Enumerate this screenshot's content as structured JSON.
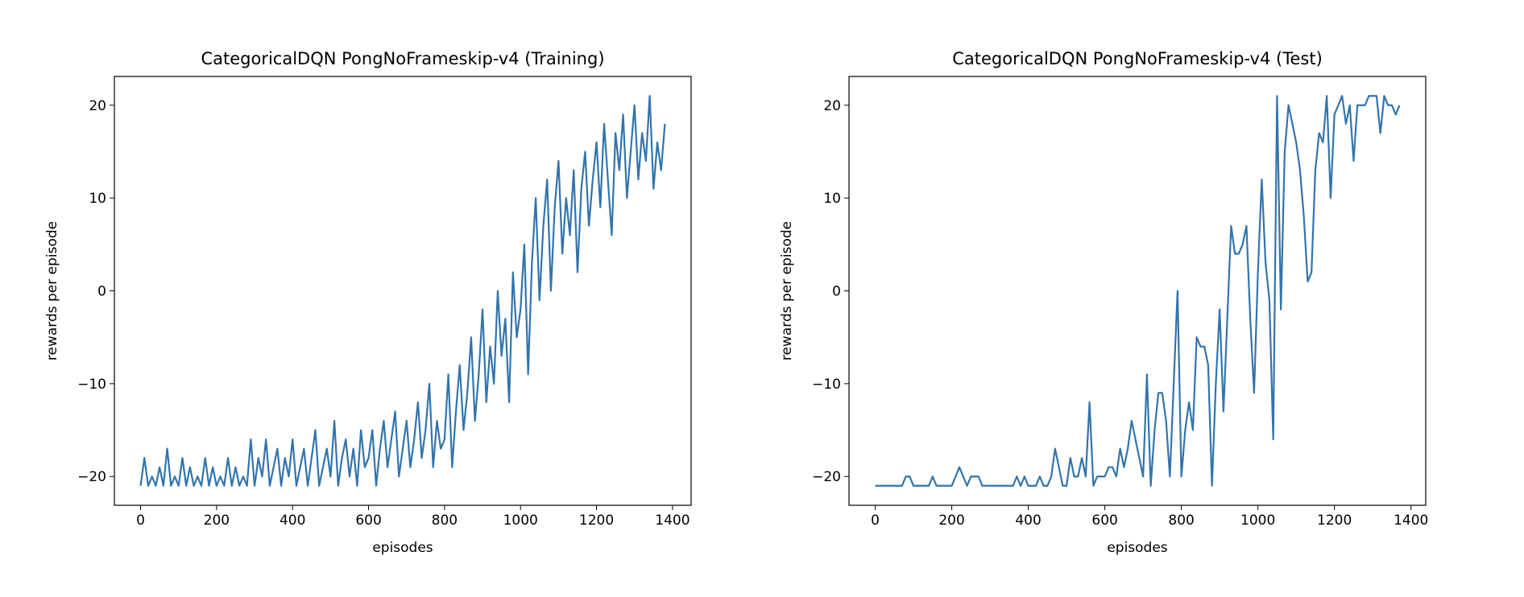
{
  "chart_data": [
    {
      "type": "line",
      "title": "CategoricalDQN PongNoFrameskip-v4 (Training)",
      "xlabel": "episodes",
      "ylabel": "rewards per episode",
      "xlim": [
        -69,
        1449
      ],
      "ylim": [
        -23.1,
        23.1
      ],
      "xticks": [
        0,
        200,
        400,
        600,
        800,
        1000,
        1200,
        1400
      ],
      "yticks": [
        {
          "value": -20,
          "label": "−20"
        },
        {
          "value": -10,
          "label": "−10"
        },
        0,
        10,
        20
      ],
      "series": [
        {
          "color": "#3274ad",
          "x": [
            0,
            10,
            20,
            30,
            40,
            50,
            60,
            70,
            80,
            90,
            100,
            110,
            120,
            130,
            140,
            150,
            160,
            170,
            180,
            190,
            200,
            210,
            220,
            230,
            240,
            250,
            260,
            270,
            280,
            290,
            300,
            310,
            320,
            330,
            340,
            350,
            360,
            370,
            380,
            390,
            400,
            410,
            420,
            430,
            440,
            450,
            460,
            470,
            480,
            490,
            500,
            510,
            520,
            530,
            540,
            550,
            560,
            570,
            580,
            590,
            600,
            610,
            620,
            630,
            640,
            650,
            660,
            670,
            680,
            690,
            700,
            710,
            720,
            730,
            740,
            750,
            760,
            770,
            780,
            790,
            800,
            810,
            820,
            830,
            840,
            850,
            860,
            870,
            880,
            890,
            900,
            910,
            920,
            930,
            940,
            950,
            960,
            970,
            980,
            990,
            1000,
            1010,
            1020,
            1030,
            1040,
            1050,
            1060,
            1070,
            1080,
            1090,
            1100,
            1110,
            1120,
            1130,
            1140,
            1150,
            1160,
            1170,
            1180,
            1190,
            1200,
            1210,
            1220,
            1230,
            1240,
            1250,
            1260,
            1270,
            1280,
            1290,
            1300,
            1310,
            1320,
            1330,
            1340,
            1350,
            1360,
            1370,
            1380
          ],
          "values": [
            -21,
            -18,
            -21,
            -20,
            -21,
            -19,
            -21,
            -17,
            -21,
            -20,
            -21,
            -18,
            -21,
            -19,
            -21,
            -20,
            -21,
            -18,
            -21,
            -19,
            -21,
            -20,
            -21,
            -18,
            -21,
            -19,
            -21,
            -20,
            -21,
            -16,
            -21,
            -18,
            -20,
            -16,
            -21,
            -19,
            -17,
            -21,
            -18,
            -20,
            -16,
            -21,
            -19,
            -17,
            -21,
            -18,
            -15,
            -21,
            -19,
            -17,
            -20,
            -14,
            -21,
            -18,
            -16,
            -20,
            -17,
            -21,
            -15,
            -19,
            -18,
            -15,
            -21,
            -17,
            -14,
            -19,
            -16,
            -13,
            -20,
            -17,
            -14,
            -19,
            -16,
            -12,
            -18,
            -15,
            -10,
            -19,
            -14,
            -17,
            -16,
            -9,
            -19,
            -13,
            -8,
            -15,
            -11,
            -5,
            -14,
            -9,
            -2,
            -12,
            -6,
            -10,
            0,
            -7,
            -3,
            -12,
            2,
            -5,
            -2,
            5,
            -9,
            3,
            10,
            -1,
            7,
            12,
            0,
            9,
            14,
            4,
            10,
            6,
            13,
            2,
            11,
            15,
            7,
            12,
            16,
            9,
            18,
            12,
            6,
            17,
            13,
            19,
            10,
            15,
            20,
            12,
            17,
            14,
            21,
            11,
            16,
            13,
            18
          ]
        }
      ]
    },
    {
      "type": "line",
      "title": "CategoricalDQN PongNoFrameskip-v4 (Test)",
      "xlabel": "episodes",
      "ylabel": "rewards per episode",
      "xlim": [
        -68.5,
        1438.5
      ],
      "ylim": [
        -23.1,
        23.1
      ],
      "xticks": [
        0,
        200,
        400,
        600,
        800,
        1000,
        1200,
        1400
      ],
      "yticks": [
        {
          "value": -20,
          "label": "−20"
        },
        {
          "value": -10,
          "label": "−10"
        },
        0,
        10,
        20
      ],
      "series": [
        {
          "color": "#3274ad",
          "x": [
            0,
            10,
            20,
            30,
            40,
            50,
            60,
            70,
            80,
            90,
            100,
            110,
            120,
            130,
            140,
            150,
            160,
            170,
            180,
            190,
            200,
            210,
            220,
            230,
            240,
            250,
            260,
            270,
            280,
            290,
            300,
            310,
            320,
            330,
            340,
            350,
            360,
            370,
            380,
            390,
            400,
            410,
            420,
            430,
            440,
            450,
            460,
            470,
            480,
            490,
            500,
            510,
            520,
            530,
            540,
            550,
            560,
            570,
            580,
            590,
            600,
            610,
            620,
            630,
            640,
            650,
            660,
            670,
            680,
            690,
            700,
            710,
            720,
            730,
            740,
            750,
            760,
            770,
            780,
            790,
            800,
            810,
            820,
            830,
            840,
            850,
            860,
            870,
            880,
            890,
            900,
            910,
            920,
            930,
            940,
            950,
            960,
            970,
            980,
            990,
            1000,
            1010,
            1020,
            1030,
            1040,
            1050,
            1060,
            1070,
            1080,
            1090,
            1100,
            1110,
            1120,
            1130,
            1140,
            1150,
            1160,
            1170,
            1180,
            1190,
            1200,
            1210,
            1220,
            1230,
            1240,
            1250,
            1260,
            1270,
            1280,
            1290,
            1300,
            1310,
            1320,
            1330,
            1340,
            1350,
            1360,
            1370
          ],
          "values": [
            -21,
            -21,
            -21,
            -21,
            -21,
            -21,
            -21,
            -21,
            -20,
            -20,
            -21,
            -21,
            -21,
            -21,
            -21,
            -20,
            -21,
            -21,
            -21,
            -21,
            -21,
            -20,
            -19,
            -20,
            -21,
            -20,
            -20,
            -20,
            -21,
            -21,
            -21,
            -21,
            -21,
            -21,
            -21,
            -21,
            -21,
            -20,
            -21,
            -20,
            -21,
            -21,
            -21,
            -20,
            -21,
            -21,
            -20,
            -17,
            -19,
            -21,
            -21,
            -18,
            -20,
            -20,
            -18,
            -20,
            -12,
            -21,
            -20,
            -20,
            -20,
            -19,
            -19,
            -20,
            -17,
            -19,
            -17,
            -14,
            -16,
            -18,
            -20,
            -9,
            -21,
            -15,
            -11,
            -11,
            -14,
            -20,
            -10,
            0,
            -20,
            -15,
            -12,
            -15,
            -5,
            -6,
            -6,
            -8,
            -21,
            -10,
            -2,
            -13,
            -3,
            7,
            4,
            4,
            5,
            7,
            -3,
            -11,
            2,
            12,
            3,
            -1,
            -16,
            21,
            -2,
            15,
            20,
            18,
            16,
            13,
            8,
            1,
            2,
            13,
            17,
            16,
            21,
            10,
            19,
            20,
            21,
            18,
            20,
            14,
            20,
            20,
            20,
            21,
            21,
            21,
            17,
            21,
            20,
            20,
            19,
            20
          ]
        }
      ]
    }
  ]
}
